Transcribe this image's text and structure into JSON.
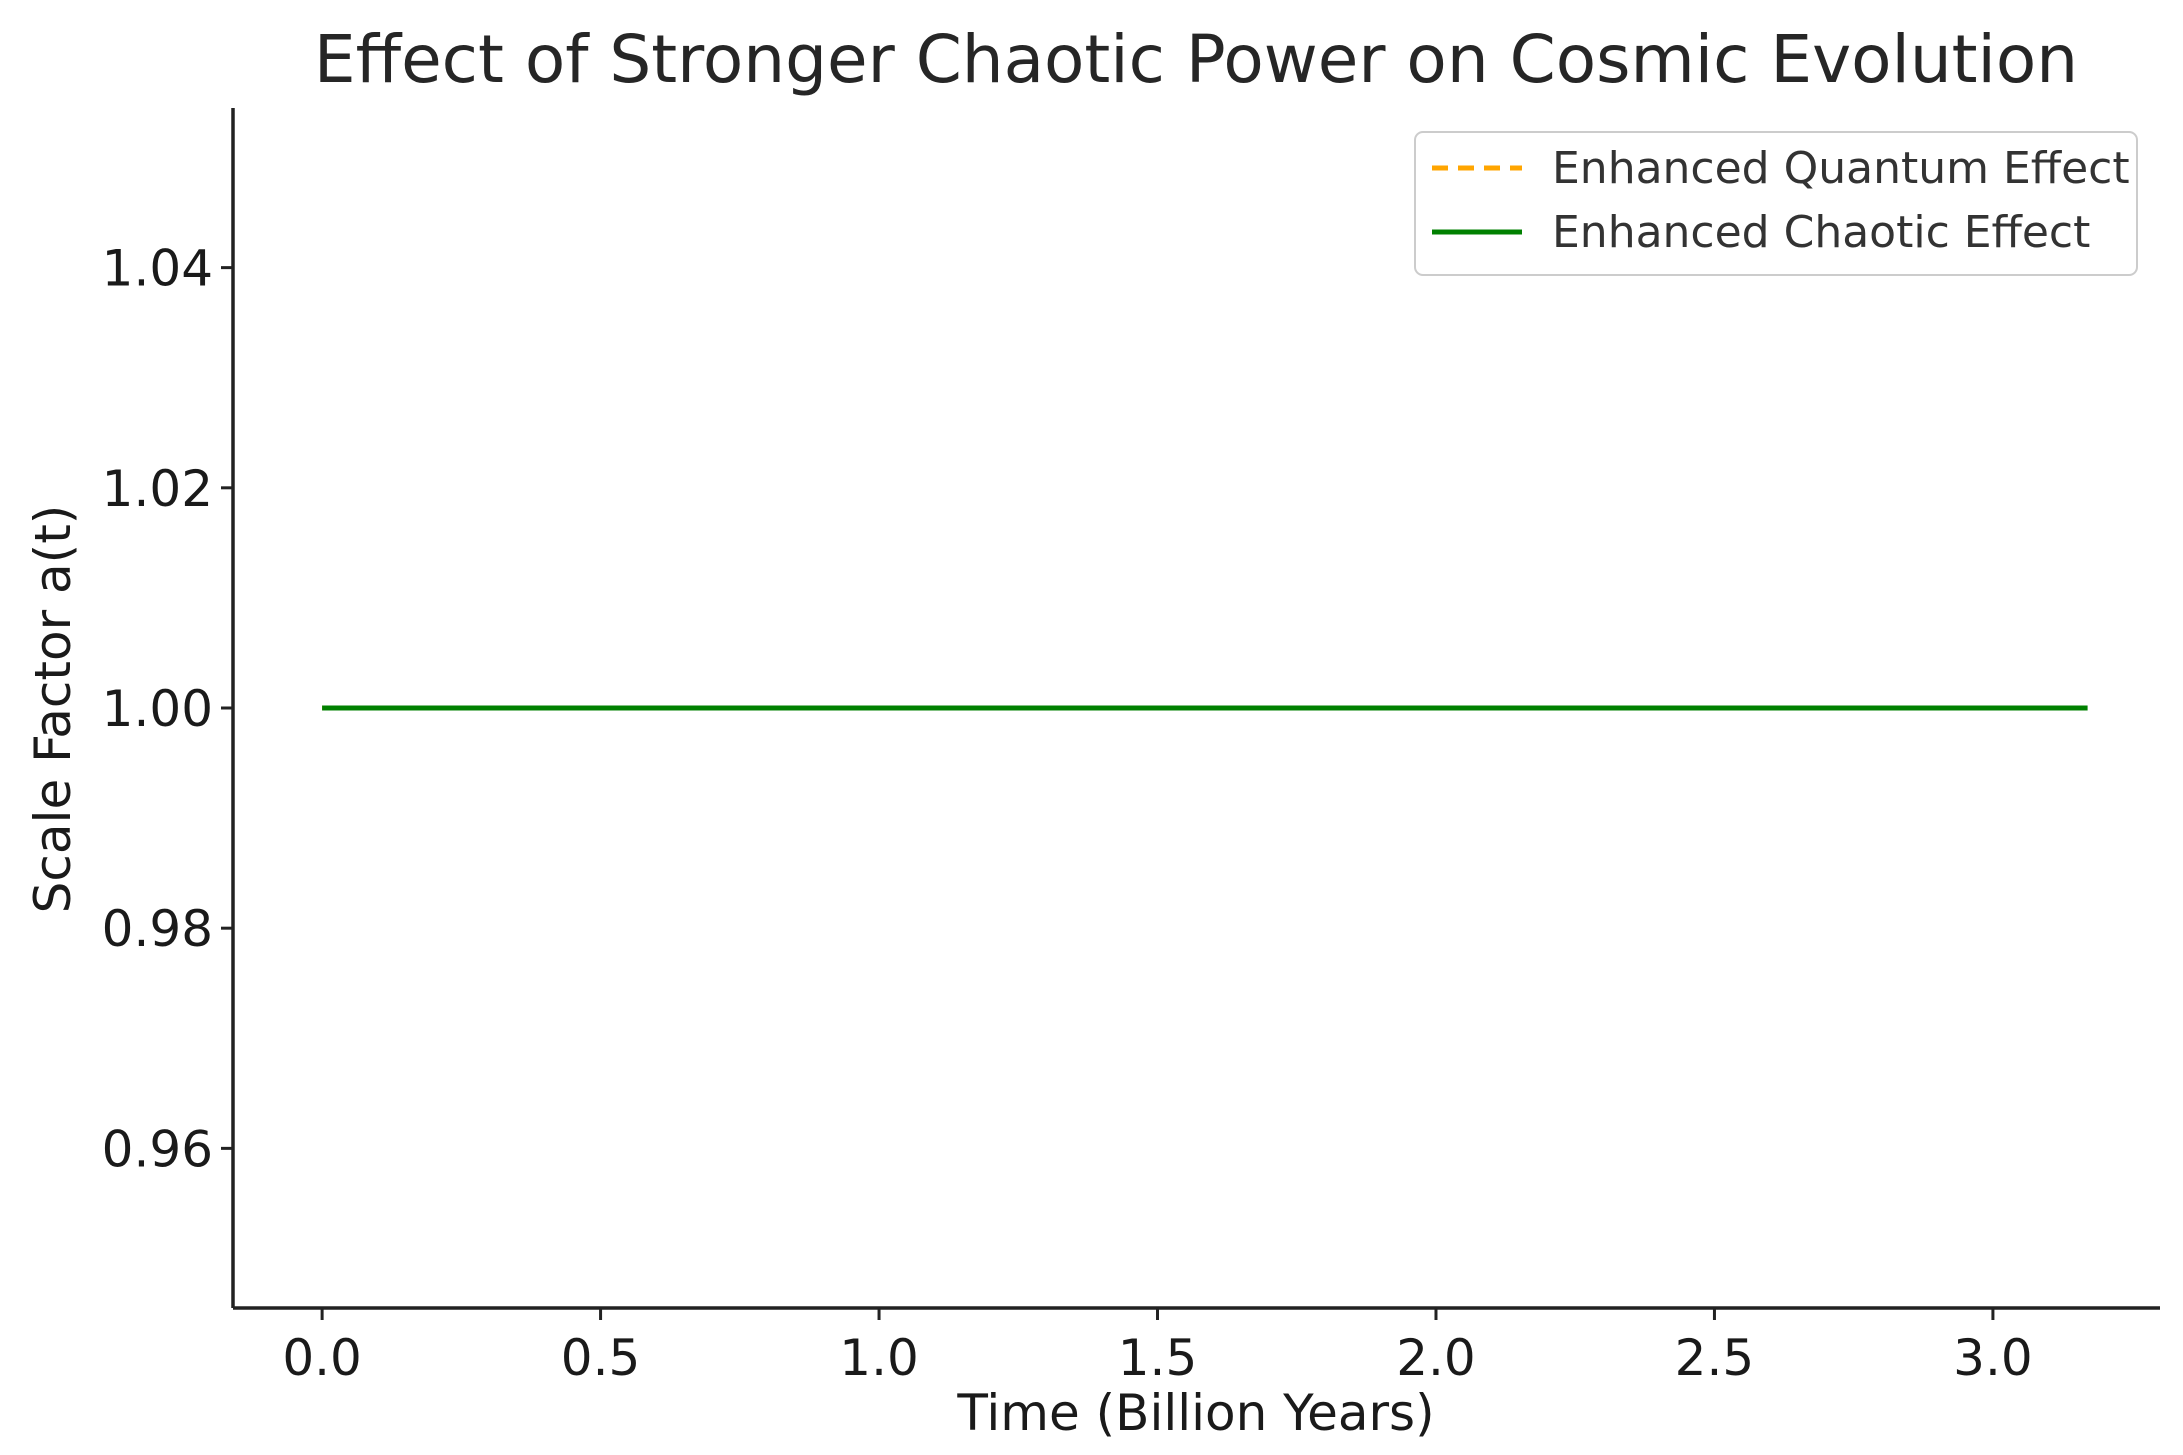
{
  "chart_data": {
    "type": "line",
    "title": "Effect of Stronger Chaotic Power on Cosmic Evolution",
    "xlabel": "Time (Billion Years)",
    "ylabel": "Scale Factor a(t)",
    "xlim": [
      -0.16,
      3.3
    ],
    "ylim": [
      0.9455,
      1.0545
    ],
    "xticks": [
      0.0,
      0.5,
      1.0,
      1.5,
      2.0,
      2.5,
      3.0
    ],
    "xtick_labels": [
      "0.0",
      "0.5",
      "1.0",
      "1.5",
      "2.0",
      "2.5",
      "3.0"
    ],
    "yticks": [
      0.96,
      0.98,
      1.0,
      1.02,
      1.04
    ],
    "ytick_labels": [
      "0.96",
      "0.98",
      "1.00",
      "1.02",
      "1.04"
    ],
    "grid": false,
    "legend_position": "top-right",
    "series": [
      {
        "name": "Enhanced Quantum Effect",
        "color": "#ffa500",
        "style": "dashed",
        "x": [
          0.0,
          3.17
        ],
        "y": [
          1.0,
          1.0
        ]
      },
      {
        "name": "Enhanced Chaotic Effect",
        "color": "#008000",
        "style": "solid",
        "x": [
          0.0,
          3.17
        ],
        "y": [
          1.0,
          1.0
        ]
      }
    ]
  }
}
